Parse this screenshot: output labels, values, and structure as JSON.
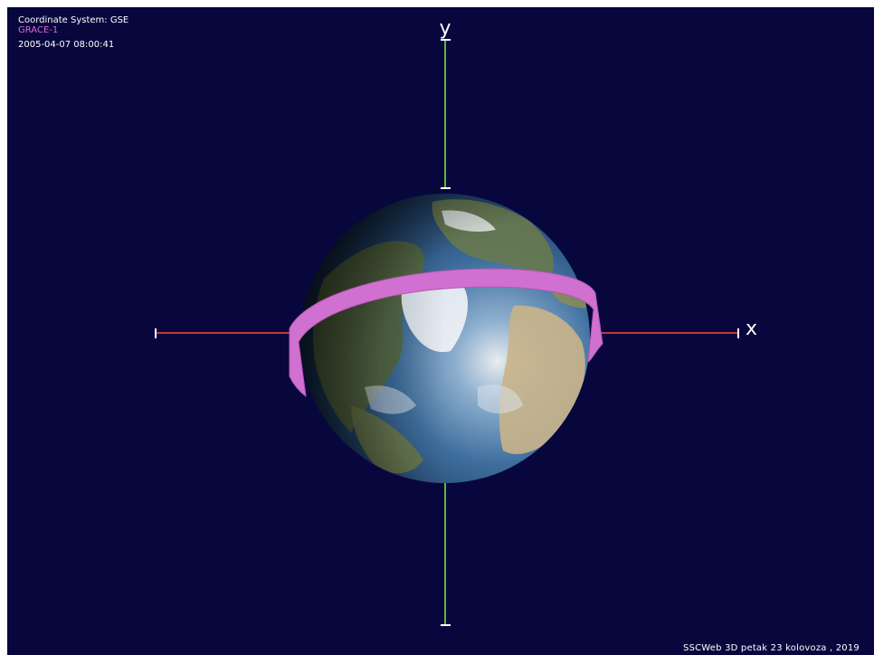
{
  "viewer": {
    "coordinate_system": "Coordinate System: GSE",
    "satellite": "GRACE-1",
    "timestamp": "2005-04-07  08:00:41",
    "footer": "SSCWeb 3D   petak 23 kolovoza , 2019"
  },
  "axes": {
    "x_label": "x",
    "y_label": "y",
    "x_axis_color": "#c0393a",
    "y_axis_color": "#58b83a"
  },
  "colors": {
    "background": "#07073d",
    "orbit": "#d070d0",
    "satellite_label": "#d46ad4"
  }
}
